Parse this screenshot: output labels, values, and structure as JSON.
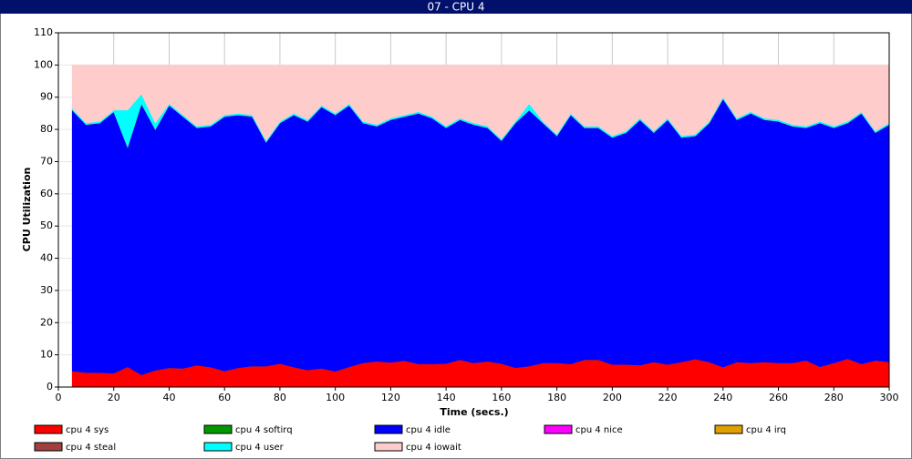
{
  "chart_data": {
    "type": "stacked-area",
    "title": "07 - CPU 4",
    "x_label": "Time (secs.)",
    "y_label": "CPU Utilization",
    "xlim": [
      0,
      300
    ],
    "xticks": [
      0,
      20,
      40,
      60,
      80,
      100,
      120,
      140,
      160,
      180,
      200,
      220,
      240,
      260,
      280,
      300
    ],
    "ylim": [
      0,
      110
    ],
    "yticks": [
      0,
      10,
      20,
      30,
      40,
      50,
      60,
      70,
      80,
      90,
      100,
      110
    ],
    "grid": true,
    "x": [
      5,
      10,
      15,
      20,
      25,
      30,
      35,
      40,
      45,
      50,
      55,
      60,
      65,
      70,
      75,
      80,
      85,
      90,
      95,
      100,
      105,
      110,
      115,
      120,
      125,
      130,
      135,
      140,
      145,
      150,
      155,
      160,
      165,
      170,
      175,
      180,
      185,
      190,
      195,
      200,
      205,
      210,
      215,
      220,
      225,
      230,
      235,
      240,
      245,
      250,
      255,
      260,
      265,
      270,
      275,
      280,
      285,
      290,
      295,
      300
    ],
    "series": [
      {
        "name": "cpu 4 sys",
        "color": "#ff0000",
        "values": [
          5,
          4.5,
          4.5,
          4.3,
          6.3,
          3.8,
          5.2,
          6,
          5.8,
          6.8,
          6.2,
          5,
          6,
          6.5,
          6.5,
          7.3,
          6.2,
          5.3,
          5.8,
          4.9,
          6.3,
          7.5,
          8,
          7.7,
          8.2,
          7.2,
          7.2,
          7.3,
          8.5,
          7.5,
          8,
          7.3,
          6,
          6.5,
          7.5,
          7.5,
          7.2,
          8.5,
          8.5,
          7,
          7,
          6.8,
          7.8,
          7,
          7.8,
          8.7,
          7.8,
          6.2,
          7.8,
          7.5,
          7.8,
          7.5,
          7.5,
          8.3,
          6.3,
          7.5,
          8.8,
          7.2,
          8.3,
          7.8
        ]
      },
      {
        "name": "cpu 4 softirq",
        "color": "#009900",
        "values": [
          0,
          0,
          0,
          0,
          0,
          0,
          0,
          0,
          0,
          0,
          0,
          0,
          0,
          0,
          0,
          0,
          0,
          0,
          0,
          0,
          0,
          0,
          0,
          0,
          0,
          0,
          0,
          0,
          0,
          0,
          0,
          0,
          0,
          0,
          0,
          0,
          0,
          0,
          0,
          0,
          0,
          0,
          0,
          0,
          0,
          0,
          0,
          0,
          0,
          0,
          0,
          0,
          0,
          0,
          0,
          0,
          0,
          0,
          0,
          0
        ]
      },
      {
        "name": "cpu 4 idle",
        "color": "#0000ff",
        "values": [
          81,
          77,
          77.5,
          81.2,
          68.2,
          84.2,
          74.8,
          81.5,
          78.2,
          73.7,
          74.8,
          79,
          78.5,
          77.5,
          69.5,
          74.7,
          78.3,
          77.2,
          81.2,
          79.6,
          81.2,
          74.5,
          73,
          75.3,
          75.8,
          77.8,
          76.3,
          73.2,
          74.5,
          74,
          72.5,
          69.2,
          76,
          79.5,
          74.5,
          70.5,
          77.3,
          72,
          72,
          70.5,
          72,
          76.2,
          71.2,
          76,
          69.7,
          69.3,
          74.2,
          83.3,
          75.2,
          77.5,
          75.2,
          75,
          73.5,
          72.2,
          75.7,
          73,
          73.2,
          77.8,
          70.7,
          73.7
        ]
      },
      {
        "name": "cpu 4 nice",
        "color": "#ff00ff",
        "values": [
          0,
          0,
          0,
          0,
          0,
          0,
          0,
          0,
          0,
          0,
          0,
          0,
          0,
          0,
          0,
          0,
          0,
          0,
          0,
          0,
          0,
          0,
          0,
          0,
          0,
          0,
          0,
          0,
          0,
          0,
          0,
          0,
          0,
          0,
          0,
          0,
          0,
          0,
          0,
          0,
          0,
          0,
          0,
          0,
          0,
          0,
          0,
          0,
          0,
          0,
          0,
          0,
          0,
          0,
          0,
          0,
          0,
          0,
          0,
          0
        ]
      },
      {
        "name": "cpu 4 irq",
        "color": "#e0a000",
        "values": [
          0,
          0,
          0,
          0,
          0,
          0,
          0,
          0,
          0,
          0,
          0,
          0,
          0,
          0,
          0,
          0,
          0,
          0,
          0,
          0,
          0,
          0,
          0,
          0,
          0,
          0,
          0,
          0,
          0,
          0,
          0,
          0,
          0,
          0,
          0,
          0,
          0,
          0,
          0,
          0,
          0,
          0,
          0,
          0,
          0,
          0,
          0,
          0,
          0,
          0,
          0,
          0,
          0,
          0,
          0,
          0,
          0,
          0,
          0,
          0
        ]
      },
      {
        "name": "cpu 4 steal",
        "color": "#a04040",
        "values": [
          0,
          0,
          0,
          0,
          0,
          0,
          0,
          0,
          0,
          0,
          0,
          0,
          0,
          0,
          0,
          0,
          0,
          0,
          0,
          0,
          0,
          0,
          0,
          0,
          0,
          0,
          0,
          0,
          0,
          0,
          0,
          0,
          0,
          0,
          0,
          0,
          0,
          0,
          0,
          0,
          0,
          0,
          0,
          0,
          0,
          0,
          0,
          0,
          0,
          0,
          0,
          0,
          0,
          0,
          0,
          0,
          0,
          0,
          0,
          0
        ]
      },
      {
        "name": "cpu 4 user",
        "color": "#00ffff",
        "values": [
          0.5,
          0.5,
          0.5,
          0.5,
          11.5,
          3,
          2,
          0.5,
          0.5,
          0.5,
          0.5,
          0.5,
          0.5,
          0.5,
          0.5,
          0.5,
          0.5,
          0.5,
          0.5,
          0.5,
          0.5,
          0.5,
          0.5,
          0.5,
          0.5,
          0.5,
          0.5,
          0.5,
          0.5,
          0.5,
          0.5,
          0.5,
          0.5,
          2,
          0.5,
          0.5,
          0.5,
          0.5,
          0.5,
          0.5,
          0.5,
          0.5,
          0.5,
          0.5,
          0.5,
          0.5,
          0.5,
          0.5,
          0.5,
          0.5,
          0.5,
          0.5,
          0.5,
          0.5,
          0.5,
          0.5,
          0.5,
          0.5,
          0.5,
          0.5
        ]
      },
      {
        "name": "cpu 4 iowait",
        "color": "#ffcccc",
        "values": [
          13.5,
          18,
          17.5,
          14,
          14,
          9,
          18,
          12,
          15.5,
          19,
          18.5,
          15.5,
          15,
          15.5,
          23.5,
          17.5,
          15,
          17,
          12.5,
          15,
          12,
          17.5,
          18.5,
          16.5,
          15.5,
          14.5,
          16,
          19,
          16.5,
          18,
          19,
          23,
          17.5,
          12,
          17.5,
          21.5,
          15,
          19,
          19,
          22,
          20.5,
          16.5,
          20.5,
          16.5,
          22,
          21.5,
          17.5,
          10,
          16.5,
          14.5,
          16.5,
          17,
          18.5,
          19,
          17.5,
          19,
          17.5,
          14.5,
          20.5,
          18
        ]
      }
    ]
  }
}
